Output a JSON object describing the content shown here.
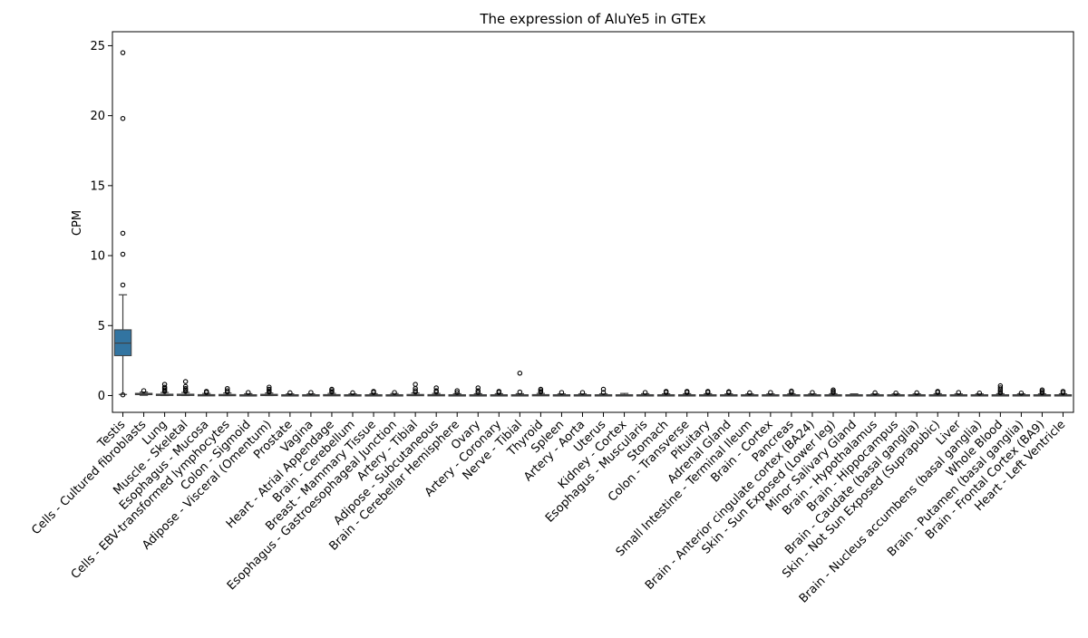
{
  "chart_data": {
    "type": "box",
    "title": "The expression of AluYe5 in GTEx",
    "xlabel": "",
    "ylabel": "CPM",
    "ylim": [
      -1.2,
      26.0
    ],
    "yticks": [
      0,
      5,
      10,
      15,
      20,
      25
    ],
    "grid": false,
    "legend": "none",
    "box_color": "#3274a1",
    "categories": [
      {
        "name": "Testis",
        "q1": 2.85,
        "median": 3.75,
        "q3": 4.7,
        "whislo": 0.08,
        "whishi": 7.2,
        "fliers": [
          24.5,
          19.8,
          11.6,
          10.1,
          7.9,
          0.05
        ]
      },
      {
        "name": "Cells - Cultured fibroblasts",
        "q1": 0.08,
        "median": 0.12,
        "q3": 0.16,
        "whislo": 0.02,
        "whishi": 0.25,
        "fliers": [
          0.35
        ]
      },
      {
        "name": "Lung",
        "q1": 0.02,
        "median": 0.05,
        "q3": 0.1,
        "whislo": 0.0,
        "whishi": 0.22,
        "fliers": [
          0.3,
          0.4,
          0.5,
          0.6,
          0.8
        ]
      },
      {
        "name": "Muscle - Skeletal",
        "q1": 0.02,
        "median": 0.05,
        "q3": 0.1,
        "whislo": 0.0,
        "whishi": 0.22,
        "fliers": [
          0.3,
          0.4,
          0.5,
          0.65,
          1.0
        ]
      },
      {
        "name": "Esophagus - Mucosa",
        "q1": 0.01,
        "median": 0.03,
        "q3": 0.07,
        "whislo": 0.0,
        "whishi": 0.15,
        "fliers": [
          0.22,
          0.3
        ]
      },
      {
        "name": "Cells - EBV-transformed lymphocytes",
        "q1": 0.01,
        "median": 0.03,
        "q3": 0.08,
        "whislo": 0.0,
        "whishi": 0.18,
        "fliers": [
          0.25,
          0.35,
          0.5
        ]
      },
      {
        "name": "Colon - Sigmoid",
        "q1": 0.01,
        "median": 0.03,
        "q3": 0.06,
        "whislo": 0.0,
        "whishi": 0.13,
        "fliers": [
          0.22
        ]
      },
      {
        "name": "Adipose - Visceral (Omentum)",
        "q1": 0.02,
        "median": 0.04,
        "q3": 0.09,
        "whislo": 0.0,
        "whishi": 0.18,
        "fliers": [
          0.25,
          0.35,
          0.45,
          0.6
        ]
      },
      {
        "name": "Prostate",
        "q1": 0.01,
        "median": 0.03,
        "q3": 0.06,
        "whislo": 0.0,
        "whishi": 0.12,
        "fliers": [
          0.2
        ]
      },
      {
        "name": "Vagina",
        "q1": 0.01,
        "median": 0.03,
        "q3": 0.06,
        "whislo": 0.0,
        "whishi": 0.12,
        "fliers": [
          0.22
        ]
      },
      {
        "name": "Heart - Atrial Appendage",
        "q1": 0.01,
        "median": 0.03,
        "q3": 0.07,
        "whislo": 0.0,
        "whishi": 0.15,
        "fliers": [
          0.25,
          0.35,
          0.45
        ]
      },
      {
        "name": "Brain - Cerebellum",
        "q1": 0.01,
        "median": 0.03,
        "q3": 0.06,
        "whislo": 0.0,
        "whishi": 0.12,
        "fliers": [
          0.2
        ]
      },
      {
        "name": "Breast - Mammary Tissue",
        "q1": 0.01,
        "median": 0.03,
        "q3": 0.06,
        "whislo": 0.0,
        "whishi": 0.13,
        "fliers": [
          0.22,
          0.3
        ]
      },
      {
        "name": "Esophagus - Gastroesophageal Junction",
        "q1": 0.01,
        "median": 0.03,
        "q3": 0.06,
        "whislo": 0.0,
        "whishi": 0.14,
        "fliers": [
          0.22
        ]
      },
      {
        "name": "Artery - Tibial",
        "q1": 0.02,
        "median": 0.04,
        "q3": 0.08,
        "whislo": 0.0,
        "whishi": 0.18,
        "fliers": [
          0.25,
          0.35,
          0.5,
          0.8
        ]
      },
      {
        "name": "Adipose - Subcutaneous",
        "q1": 0.01,
        "median": 0.03,
        "q3": 0.07,
        "whislo": 0.0,
        "whishi": 0.15,
        "fliers": [
          0.25,
          0.35,
          0.55
        ]
      },
      {
        "name": "Brain - Cerebellar Hemisphere",
        "q1": 0.01,
        "median": 0.03,
        "q3": 0.06,
        "whislo": 0.0,
        "whishi": 0.13,
        "fliers": [
          0.22,
          0.35
        ]
      },
      {
        "name": "Ovary",
        "q1": 0.01,
        "median": 0.03,
        "q3": 0.06,
        "whislo": 0.0,
        "whishi": 0.13,
        "fliers": [
          0.22,
          0.35,
          0.55
        ]
      },
      {
        "name": "Artery - Coronary",
        "q1": 0.01,
        "median": 0.03,
        "q3": 0.06,
        "whislo": 0.0,
        "whishi": 0.13,
        "fliers": [
          0.22,
          0.3
        ]
      },
      {
        "name": "Nerve - Tibial",
        "q1": 0.01,
        "median": 0.03,
        "q3": 0.06,
        "whislo": 0.0,
        "whishi": 0.13,
        "fliers": [
          0.25,
          1.6
        ]
      },
      {
        "name": "Thyroid",
        "q1": 0.01,
        "median": 0.03,
        "q3": 0.07,
        "whislo": 0.0,
        "whishi": 0.15,
        "fliers": [
          0.25,
          0.35,
          0.45
        ]
      },
      {
        "name": "Spleen",
        "q1": 0.01,
        "median": 0.03,
        "q3": 0.06,
        "whislo": 0.0,
        "whishi": 0.12,
        "fliers": [
          0.22
        ]
      },
      {
        "name": "Artery - Aorta",
        "q1": 0.01,
        "median": 0.03,
        "q3": 0.06,
        "whislo": 0.0,
        "whishi": 0.12,
        "fliers": [
          0.22
        ]
      },
      {
        "name": "Uterus",
        "q1": 0.01,
        "median": 0.03,
        "q3": 0.06,
        "whislo": 0.0,
        "whishi": 0.12,
        "fliers": [
          0.22,
          0.45
        ]
      },
      {
        "name": "Kidney - Cortex",
        "q1": 0.01,
        "median": 0.03,
        "q3": 0.06,
        "whislo": 0.0,
        "whishi": 0.15,
        "fliers": []
      },
      {
        "name": "Esophagus - Muscularis",
        "q1": 0.01,
        "median": 0.03,
        "q3": 0.06,
        "whislo": 0.0,
        "whishi": 0.13,
        "fliers": [
          0.22
        ]
      },
      {
        "name": "Stomach",
        "q1": 0.01,
        "median": 0.03,
        "q3": 0.06,
        "whislo": 0.0,
        "whishi": 0.12,
        "fliers": [
          0.22,
          0.3
        ]
      },
      {
        "name": "Colon - Transverse",
        "q1": 0.01,
        "median": 0.03,
        "q3": 0.06,
        "whislo": 0.0,
        "whishi": 0.13,
        "fliers": [
          0.22,
          0.3
        ]
      },
      {
        "name": "Pituitary",
        "q1": 0.01,
        "median": 0.03,
        "q3": 0.06,
        "whislo": 0.0,
        "whishi": 0.13,
        "fliers": [
          0.22,
          0.3
        ]
      },
      {
        "name": "Adrenal Gland",
        "q1": 0.01,
        "median": 0.03,
        "q3": 0.06,
        "whislo": 0.0,
        "whishi": 0.12,
        "fliers": [
          0.22,
          0.28
        ]
      },
      {
        "name": "Small Intestine - Terminal Ileum",
        "q1": 0.01,
        "median": 0.03,
        "q3": 0.06,
        "whislo": 0.0,
        "whishi": 0.12,
        "fliers": [
          0.2
        ]
      },
      {
        "name": "Brain - Cortex",
        "q1": 0.01,
        "median": 0.03,
        "q3": 0.06,
        "whislo": 0.0,
        "whishi": 0.12,
        "fliers": [
          0.22
        ]
      },
      {
        "name": "Pancreas",
        "q1": 0.01,
        "median": 0.03,
        "q3": 0.06,
        "whislo": 0.0,
        "whishi": 0.12,
        "fliers": [
          0.22,
          0.32
        ]
      },
      {
        "name": "Brain - Anterior cingulate cortex (BA24)",
        "q1": 0.01,
        "median": 0.03,
        "q3": 0.06,
        "whislo": 0.0,
        "whishi": 0.12,
        "fliers": [
          0.22
        ]
      },
      {
        "name": "Skin - Sun Exposed (Lower leg)",
        "q1": 0.01,
        "median": 0.03,
        "q3": 0.06,
        "whislo": 0.0,
        "whishi": 0.13,
        "fliers": [
          0.22,
          0.3,
          0.4
        ]
      },
      {
        "name": "Minor Salivary Gland",
        "q1": 0.01,
        "median": 0.03,
        "q3": 0.06,
        "whislo": 0.0,
        "whishi": 0.12,
        "fliers": []
      },
      {
        "name": "Brain - Hypothalamus",
        "q1": 0.01,
        "median": 0.03,
        "q3": 0.06,
        "whislo": 0.0,
        "whishi": 0.12,
        "fliers": [
          0.2
        ]
      },
      {
        "name": "Brain - Hippocampus",
        "q1": 0.01,
        "median": 0.03,
        "q3": 0.06,
        "whislo": 0.0,
        "whishi": 0.12,
        "fliers": [
          0.18
        ]
      },
      {
        "name": "Brain - Caudate (basal ganglia)",
        "q1": 0.01,
        "median": 0.03,
        "q3": 0.06,
        "whislo": 0.0,
        "whishi": 0.12,
        "fliers": [
          0.2
        ]
      },
      {
        "name": "Skin - Not Sun Exposed (Suprapubic)",
        "q1": 0.01,
        "median": 0.03,
        "q3": 0.06,
        "whislo": 0.0,
        "whishi": 0.13,
        "fliers": [
          0.22,
          0.3
        ]
      },
      {
        "name": "Liver",
        "q1": 0.01,
        "median": 0.03,
        "q3": 0.06,
        "whislo": 0.0,
        "whishi": 0.12,
        "fliers": [
          0.22
        ]
      },
      {
        "name": "Brain - Nucleus accumbens (basal ganglia)",
        "q1": 0.01,
        "median": 0.03,
        "q3": 0.06,
        "whislo": 0.0,
        "whishi": 0.12,
        "fliers": [
          0.18
        ]
      },
      {
        "name": "Whole Blood",
        "q1": 0.01,
        "median": 0.03,
        "q3": 0.06,
        "whislo": 0.0,
        "whishi": 0.13,
        "fliers": [
          0.2,
          0.3,
          0.4,
          0.55,
          0.7
        ]
      },
      {
        "name": "Brain - Putamen (basal ganglia)",
        "q1": 0.01,
        "median": 0.03,
        "q3": 0.06,
        "whislo": 0.0,
        "whishi": 0.12,
        "fliers": [
          0.18
        ]
      },
      {
        "name": "Brain - Frontal Cortex (BA9)",
        "q1": 0.01,
        "median": 0.03,
        "q3": 0.06,
        "whislo": 0.0,
        "whishi": 0.12,
        "fliers": [
          0.2,
          0.3,
          0.4
        ]
      },
      {
        "name": "Heart - Left Ventricle",
        "q1": 0.01,
        "median": 0.03,
        "q3": 0.06,
        "whislo": 0.0,
        "whishi": 0.12,
        "fliers": [
          0.2,
          0.3
        ]
      }
    ]
  }
}
